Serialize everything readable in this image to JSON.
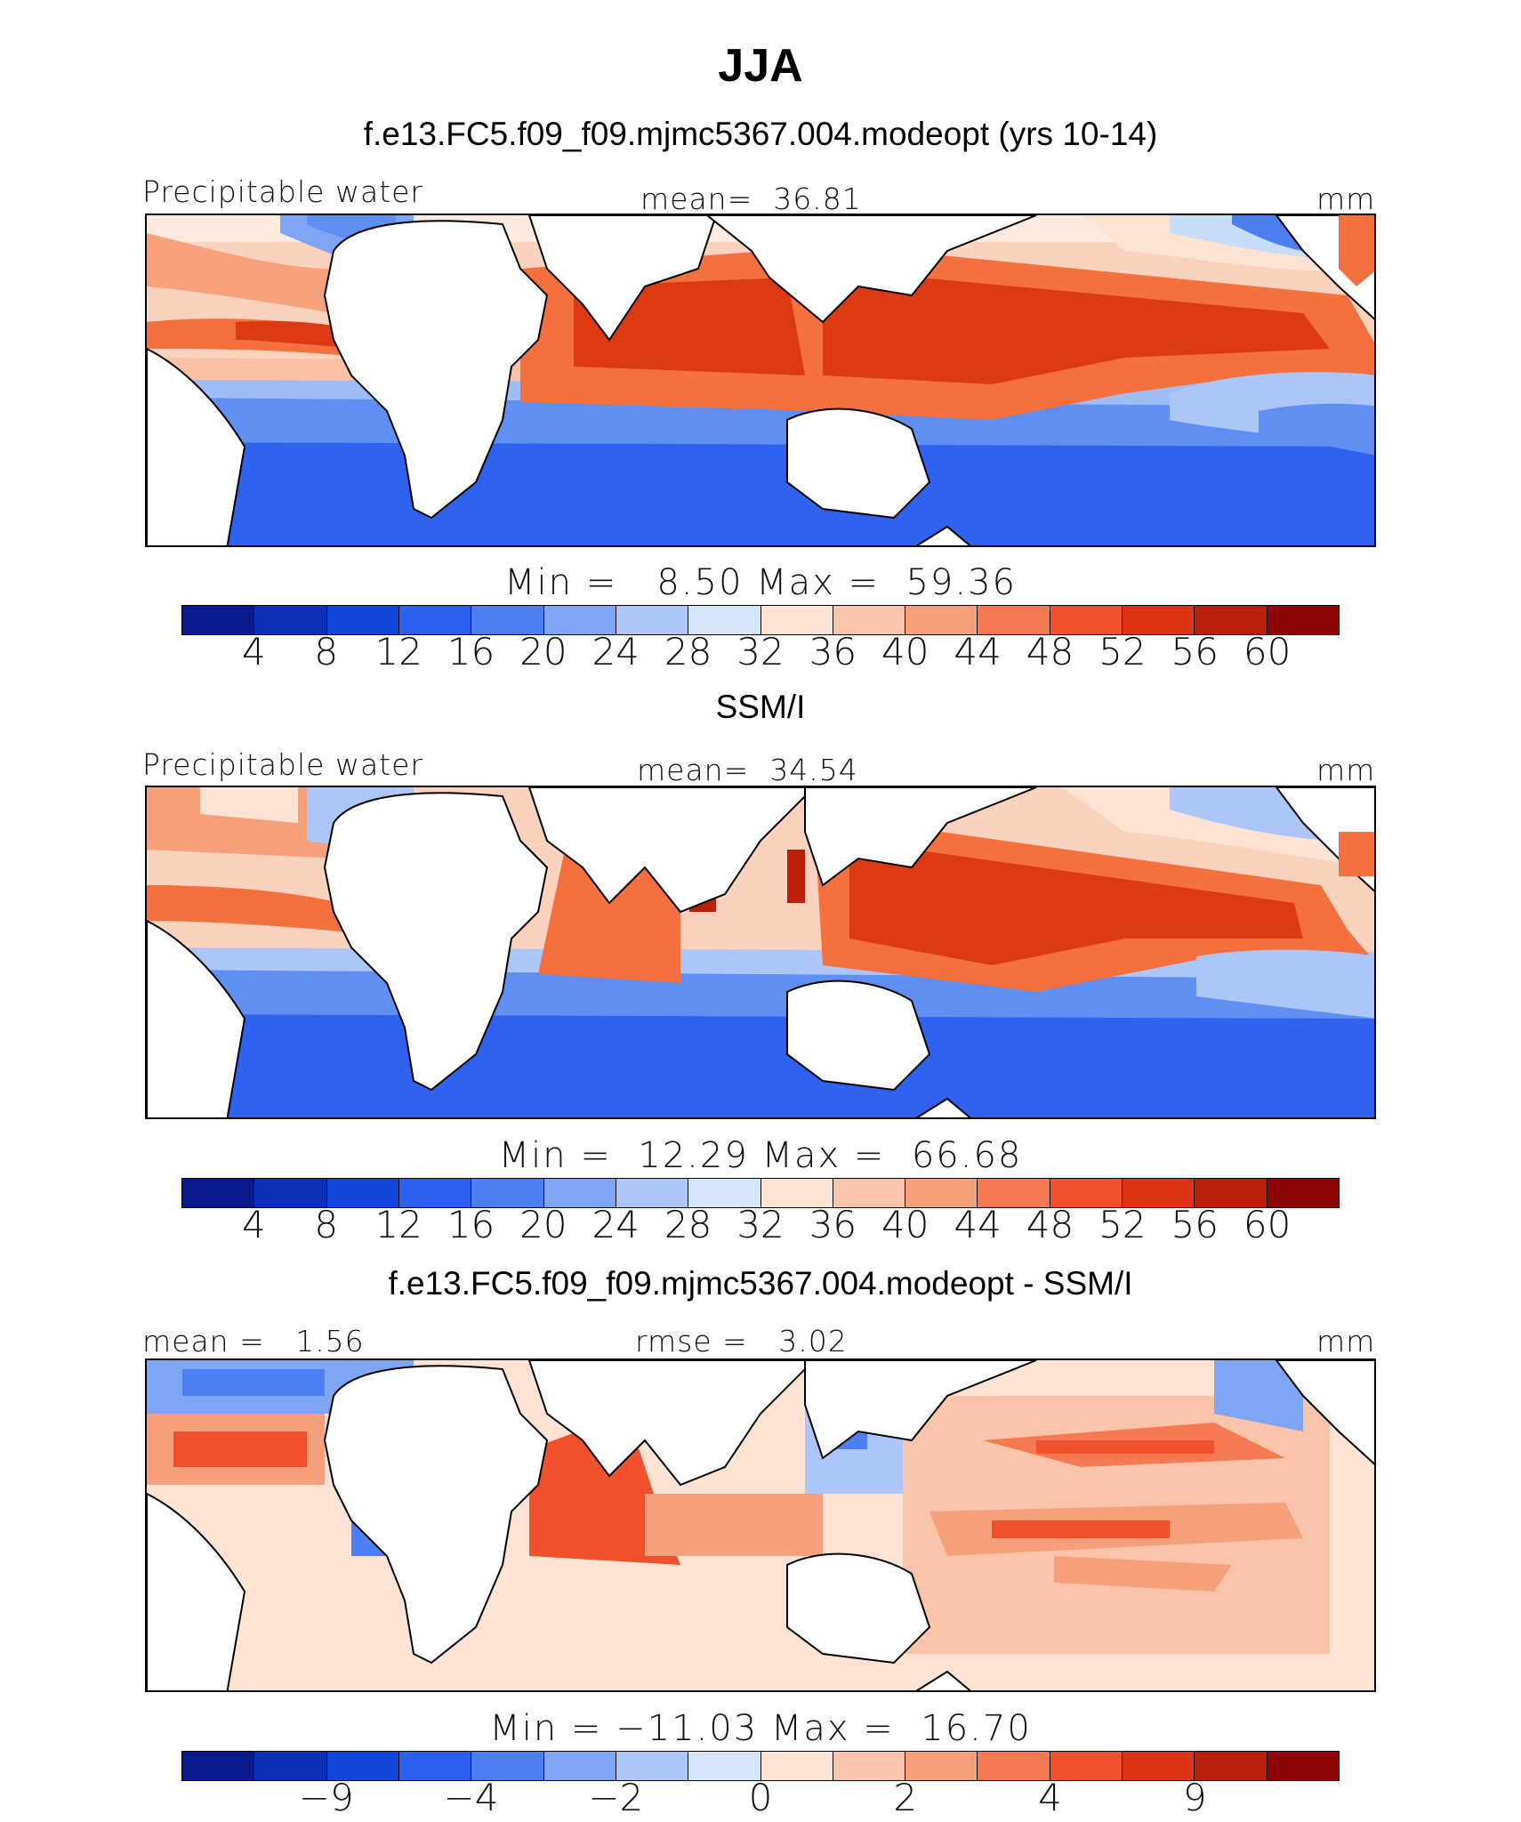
{
  "title": "JJA",
  "panels": [
    {
      "subtitle": "f.e13.FC5.f09_f09.mjmc5367.004.modeopt (yrs 10-14)",
      "left_label": "Precipitable water",
      "center_label": "mean=  36.81",
      "right_label": "mm",
      "minmax_label": "Min =   8.50 Max =  59.36",
      "tick_labels": [
        "4",
        "8",
        "12",
        "16",
        "20",
        "24",
        "28",
        "32",
        "36",
        "40",
        "44",
        "48",
        "52",
        "56",
        "60"
      ]
    },
    {
      "subtitle": "SSM/I",
      "left_label": "Precipitable water",
      "center_label": "mean=  34.54",
      "right_label": "mm",
      "minmax_label": "Min =  12.29 Max =  66.68",
      "tick_labels": [
        "4",
        "8",
        "12",
        "16",
        "20",
        "24",
        "28",
        "32",
        "36",
        "40",
        "44",
        "48",
        "52",
        "56",
        "60"
      ]
    },
    {
      "subtitle": "f.e13.FC5.f09_f09.mjmc5367.004.modeopt - SSM/I",
      "left_label": "mean =   1.56",
      "center_label": "rmse =   3.02",
      "right_label": "mm",
      "minmax_label": "Min = −11.03 Max =  16.70",
      "tick_labels": [
        "−9",
        "−4",
        "−2",
        "0",
        "2",
        "4",
        "9"
      ]
    }
  ],
  "colorbar_colors": [
    "#0a1a8c",
    "#0b2fb8",
    "#0f46d9",
    "#2a5ff0",
    "#4d7ff2",
    "#7fa5f5",
    "#abc6f7",
    "#d6e5fa",
    "#fde3d3",
    "#f9c4aa",
    "#f7a07c",
    "#f57a51",
    "#f0502b",
    "#dc3415",
    "#b8200c",
    "#8e0505"
  ],
  "color_roles": {
    "land": "#ffffff",
    "coastline": "#000000",
    "deep_blue": "#1f55ea",
    "mid_blue": "#5f8ff2",
    "light_blue": "#c9dcf9",
    "neutral": "#fde9dc",
    "light_red": "#f8b597",
    "mid_red": "#f4703f",
    "deep_red": "#dc3a15"
  }
}
